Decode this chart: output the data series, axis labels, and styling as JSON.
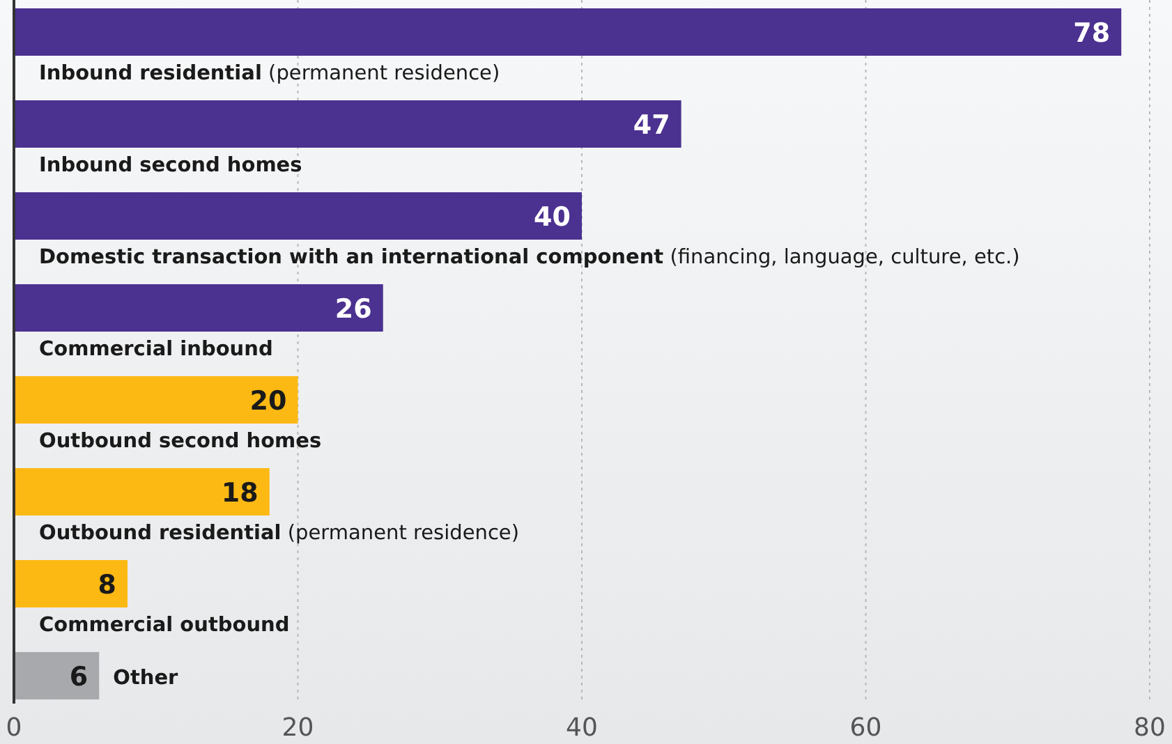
{
  "chart_data": {
    "type": "bar",
    "orientation": "horizontal",
    "categories": [
      "Inbound residential (permanent residence)",
      "Inbound second homes",
      "Domestic transaction with an international component (financing, language, culture, etc.)",
      "Commercial inbound",
      "Outbound second homes",
      "Outbound residential (permanent residence)",
      "Commercial outbound",
      "Other"
    ],
    "values": [
      78,
      47,
      40,
      26,
      20,
      18,
      8,
      6
    ],
    "colors": [
      "#4b3190",
      "#4b3190",
      "#4b3190",
      "#4b3190",
      "#fdb913",
      "#fdb913",
      "#fdb913",
      "#a7a9ac"
    ],
    "xlim": [
      0,
      80
    ],
    "xticks": [
      0,
      20,
      40,
      60,
      80
    ],
    "grid": "x",
    "data_labels": true
  }
}
